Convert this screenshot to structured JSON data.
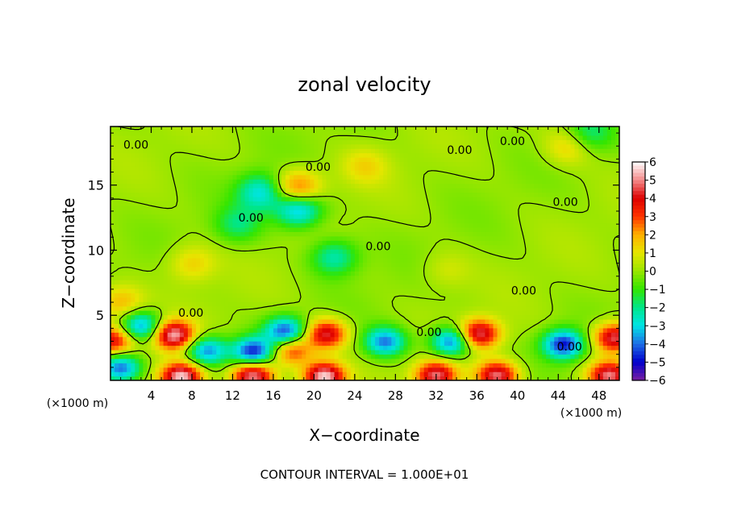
{
  "chart_data": {
    "type": "heatmap",
    "title": "zonal velocity",
    "xlabel": "X−coordinate",
    "ylabel": "Z−coordinate",
    "x_unit_left": "(×1000 m)",
    "x_unit_right": "(×1000 m)",
    "footer": "CONTOUR INTERVAL = 1.000E+01",
    "xlim": [
      0,
      50
    ],
    "ylim": [
      0,
      19.5
    ],
    "x_ticks": [
      "4",
      "8",
      "12",
      "16",
      "20",
      "24",
      "28",
      "32",
      "36",
      "40",
      "44",
      "48"
    ],
    "x_tick_values": [
      4,
      8,
      12,
      16,
      20,
      24,
      28,
      32,
      36,
      40,
      44,
      48
    ],
    "y_ticks": [
      "5",
      "10",
      "15"
    ],
    "y_tick_values": [
      5,
      10,
      15
    ],
    "colorbar": {
      "range": [
        -6,
        6
      ],
      "ticks": [
        "6",
        "5",
        "4",
        "3",
        "2",
        "1",
        "0",
        "−1",
        "−2",
        "−3",
        "−4",
        "−5",
        "−6"
      ],
      "tick_values": [
        6,
        5,
        4,
        3,
        2,
        1,
        0,
        -1,
        -2,
        -3,
        -4,
        -5,
        -6
      ],
      "colors": [
        "#7a1fa2",
        "#0000cc",
        "#1e6ee6",
        "#00e5e5",
        "#00e68a",
        "#33e600",
        "#99e600",
        "#e6e600",
        "#ffb000",
        "#ff3300",
        "#dd0000",
        "#f48a8a",
        "#ffffff"
      ]
    },
    "contour_label": "0.00",
    "contour_level": 0.0,
    "contour_labels": [
      {
        "x": 2.5,
        "z": 18.1
      },
      {
        "x": 20.4,
        "z": 16.4
      },
      {
        "x": 34.3,
        "z": 17.7
      },
      {
        "x": 39.5,
        "z": 18.4
      },
      {
        "x": 13.8,
        "z": 12.5
      },
      {
        "x": 44.7,
        "z": 13.7
      },
      {
        "x": 26.3,
        "z": 10.3
      },
      {
        "x": 40.6,
        "z": 6.9
      },
      {
        "x": 7.9,
        "z": 5.2
      },
      {
        "x": 31.3,
        "z": 3.7
      },
      {
        "x": 45.1,
        "z": 2.6
      }
    ],
    "features": [
      {
        "kind": "high",
        "x": 6.2,
        "z": 3.5,
        "amp": 5.5
      },
      {
        "kind": "high",
        "x": 21.2,
        "z": 3.6,
        "amp": 4.5
      },
      {
        "kind": "high",
        "x": 36.2,
        "z": 3.6,
        "amp": 5.0
      },
      {
        "kind": "high",
        "x": 49.5,
        "z": 3.3,
        "amp": 5.0
      },
      {
        "kind": "high",
        "x": 0.3,
        "z": 3.1,
        "amp": 4.0
      },
      {
        "kind": "high",
        "x": 7.0,
        "z": 0.3,
        "amp": 6.0
      },
      {
        "kind": "high",
        "x": 14.0,
        "z": 0.4,
        "amp": 5.5
      },
      {
        "kind": "high",
        "x": 21.0,
        "z": 0.3,
        "amp": 6.0
      },
      {
        "kind": "high",
        "x": 32.0,
        "z": 0.4,
        "amp": 5.0
      },
      {
        "kind": "high",
        "x": 38.0,
        "z": 0.4,
        "amp": 5.0
      },
      {
        "kind": "high",
        "x": 49.0,
        "z": 0.4,
        "amp": 5.0
      },
      {
        "kind": "high",
        "x": 18.4,
        "z": 14.6,
        "amp": 3.8
      },
      {
        "kind": "high",
        "x": 17.8,
        "z": 2.3,
        "amp": 3.5
      },
      {
        "kind": "low",
        "x": 14.0,
        "z": 2.2,
        "amp": -5.0
      },
      {
        "kind": "low",
        "x": 17.2,
        "z": 3.8,
        "amp": -4.5
      },
      {
        "kind": "low",
        "x": 9.5,
        "z": 2.3,
        "amp": -4.0
      },
      {
        "kind": "low",
        "x": 3.0,
        "z": 4.2,
        "amp": -4.0
      },
      {
        "kind": "low",
        "x": 27.0,
        "z": 3.0,
        "amp": -4.0
      },
      {
        "kind": "low",
        "x": 33.5,
        "z": 3.0,
        "amp": -4.5
      },
      {
        "kind": "low",
        "x": 44.5,
        "z": 2.8,
        "amp": -5.0
      },
      {
        "kind": "low",
        "x": 1.0,
        "z": 1.0,
        "amp": -4.5
      },
      {
        "kind": "low",
        "x": 18.5,
        "z": 13.3,
        "amp": -4.5
      },
      {
        "kind": "low",
        "x": 14.8,
        "z": 14.5,
        "amp": -3.0
      },
      {
        "kind": "low",
        "x": 22.0,
        "z": 9.5,
        "amp": -2.5
      },
      {
        "kind": "low",
        "x": 12.5,
        "z": 12.0,
        "amp": -1.8
      },
      {
        "kind": "low",
        "x": 47.0,
        "z": 19.0,
        "amp": -1.8
      },
      {
        "kind": "low",
        "x": 25.0,
        "z": 16.5,
        "amp": 1.2
      },
      {
        "kind": "high",
        "x": 8.0,
        "z": 9.0,
        "amp": 1.5
      },
      {
        "kind": "high",
        "x": 45.0,
        "z": 18.0,
        "amp": 1.6
      },
      {
        "kind": "high",
        "x": 1.0,
        "z": 6.0,
        "amp": 2.0
      },
      {
        "kind": "high",
        "x": 33.0,
        "z": 8.5,
        "amp": 0.8
      }
    ]
  }
}
